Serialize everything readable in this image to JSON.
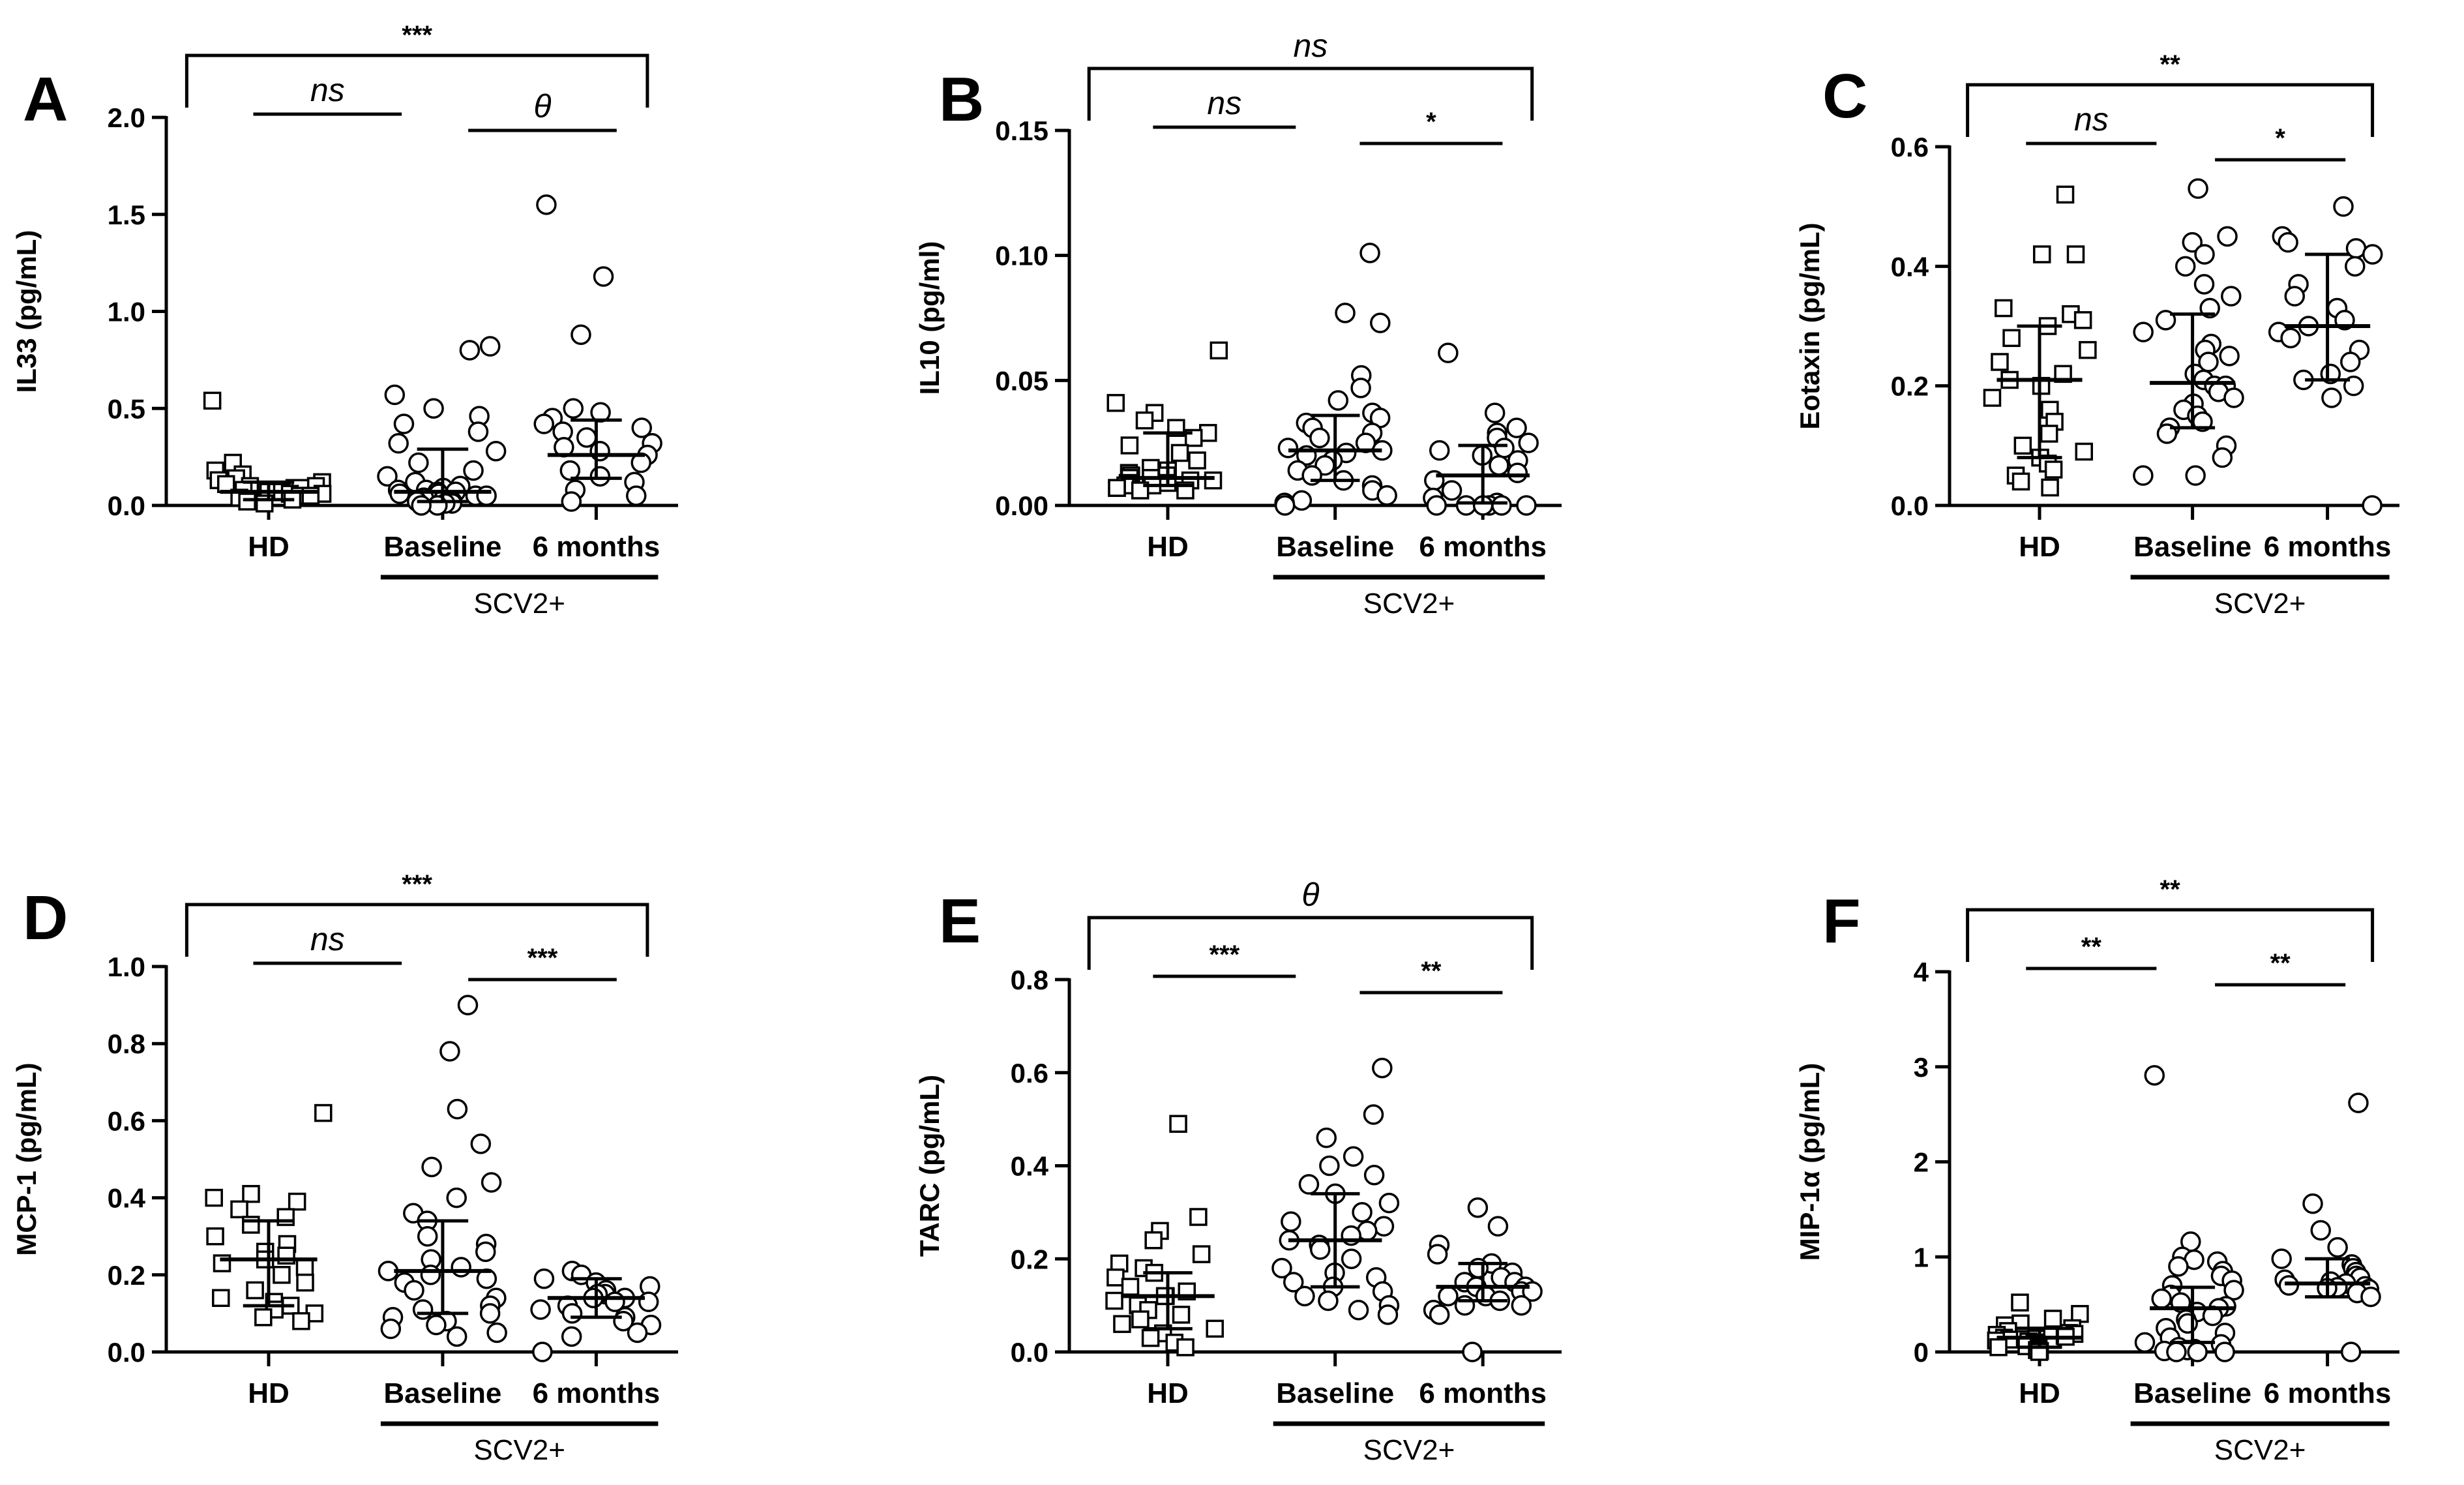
{
  "chart_data": [
    {
      "type": "scatter",
      "panel": "A",
      "ylabel": "IL33 (pg/mL)",
      "ylim": [
        0,
        2.0
      ],
      "yticks": [
        "0.0",
        "0.5",
        "1.0",
        "1.5",
        "2.0"
      ],
      "categories": [
        "HD",
        "Baseline",
        "6 months"
      ],
      "group_label": "SCV2+",
      "markers": [
        "square",
        "circle",
        "circle"
      ],
      "series": [
        {
          "name": "HD",
          "median": 0.07,
          "q1": 0.03,
          "q3": 0.12,
          "values": [
            0.54,
            0.22,
            0.18,
            0.16,
            0.14,
            0.13,
            0.12,
            0.11,
            0.1,
            0.1,
            0.09,
            0.09,
            0.08,
            0.08,
            0.07,
            0.07,
            0.06,
            0.06,
            0.05,
            0.05,
            0.04,
            0.03,
            0.02,
            0.01
          ]
        },
        {
          "name": "Baseline",
          "median": 0.07,
          "q1": 0.02,
          "q3": 0.29,
          "values": [
            0.82,
            0.8,
            0.57,
            0.5,
            0.46,
            0.42,
            0.38,
            0.32,
            0.28,
            0.22,
            0.18,
            0.15,
            0.12,
            0.1,
            0.09,
            0.08,
            0.08,
            0.07,
            0.07,
            0.06,
            0.06,
            0.05,
            0.05,
            0.04,
            0.03,
            0.02,
            0.02,
            0.01,
            0.01,
            0.0,
            0.0
          ]
        },
        {
          "name": "6 months",
          "median": 0.26,
          "q1": 0.14,
          "q3": 0.44,
          "values": [
            1.55,
            1.18,
            0.88,
            0.5,
            0.48,
            0.45,
            0.42,
            0.4,
            0.38,
            0.35,
            0.32,
            0.3,
            0.28,
            0.26,
            0.22,
            0.18,
            0.15,
            0.12,
            0.08,
            0.05,
            0.02
          ]
        }
      ],
      "comparisons": [
        {
          "groups": [
            "HD",
            "6 months"
          ],
          "label": "***",
          "style": "bracket",
          "italic": false
        },
        {
          "groups": [
            "HD",
            "Baseline"
          ],
          "label": "ns",
          "style": "line",
          "italic": true
        },
        {
          "groups": [
            "Baseline",
            "6 months"
          ],
          "label": "θ",
          "style": "line",
          "italic": true
        }
      ]
    },
    {
      "type": "scatter",
      "panel": "B",
      "ylabel": "IL10 (pg/ml)",
      "ylim": [
        0,
        0.15
      ],
      "yticks": [
        "0.00",
        "0.05",
        "0.10",
        "0.15"
      ],
      "categories": [
        "HD",
        "Baseline",
        "6 months"
      ],
      "group_label": "SCV2+",
      "markers": [
        "square",
        "circle",
        "circle"
      ],
      "series": [
        {
          "name": "HD",
          "median": 0.011,
          "q1": 0.008,
          "q3": 0.029,
          "values": [
            0.062,
            0.041,
            0.037,
            0.034,
            0.031,
            0.029,
            0.027,
            0.024,
            0.021,
            0.018,
            0.015,
            0.014,
            0.013,
            0.012,
            0.012,
            0.011,
            0.011,
            0.01,
            0.01,
            0.009,
            0.009,
            0.008,
            0.008,
            0.007,
            0.007,
            0.006,
            0.006
          ]
        },
        {
          "name": "Baseline",
          "median": 0.022,
          "q1": 0.01,
          "q3": 0.036,
          "values": [
            0.101,
            0.077,
            0.073,
            0.052,
            0.047,
            0.042,
            0.037,
            0.035,
            0.033,
            0.031,
            0.029,
            0.027,
            0.025,
            0.023,
            0.022,
            0.021,
            0.02,
            0.018,
            0.016,
            0.014,
            0.012,
            0.01,
            0.008,
            0.006,
            0.004,
            0.002,
            0.001,
            0.0
          ]
        },
        {
          "name": "6 months",
          "median": 0.012,
          "q1": 0.001,
          "q3": 0.024,
          "values": [
            0.061,
            0.037,
            0.031,
            0.029,
            0.027,
            0.025,
            0.023,
            0.022,
            0.02,
            0.018,
            0.016,
            0.013,
            0.01,
            0.006,
            0.003,
            0.001,
            0.0,
            0.0,
            0.0,
            0.0,
            0.0,
            0.0
          ]
        }
      ],
      "comparisons": [
        {
          "groups": [
            "HD",
            "6 months"
          ],
          "label": "ns",
          "style": "bracket",
          "italic": true
        },
        {
          "groups": [
            "HD",
            "Baseline"
          ],
          "label": "ns",
          "style": "line",
          "italic": true
        },
        {
          "groups": [
            "Baseline",
            "6 months"
          ],
          "label": "*",
          "style": "line",
          "italic": false
        }
      ]
    },
    {
      "type": "scatter",
      "panel": "C",
      "ylabel": "Eotaxin (pg/mL)",
      "ylim": [
        0,
        0.6
      ],
      "yticks": [
        "0.0",
        "0.2",
        "0.4",
        "0.6"
      ],
      "categories": [
        "HD",
        "Baseline",
        "6 months"
      ],
      "group_label": "SCV2+",
      "markers": [
        "square",
        "circle",
        "circle"
      ],
      "series": [
        {
          "name": "HD",
          "median": 0.21,
          "q1": 0.08,
          "q3": 0.3,
          "values": [
            0.52,
            0.42,
            0.42,
            0.33,
            0.32,
            0.31,
            0.3,
            0.28,
            0.26,
            0.24,
            0.22,
            0.21,
            0.2,
            0.18,
            0.16,
            0.14,
            0.12,
            0.1,
            0.09,
            0.08,
            0.07,
            0.06,
            0.05,
            0.04,
            0.03
          ]
        },
        {
          "name": "Baseline",
          "median": 0.205,
          "q1": 0.13,
          "q3": 0.32,
          "values": [
            0.53,
            0.45,
            0.44,
            0.42,
            0.4,
            0.37,
            0.35,
            0.33,
            0.31,
            0.29,
            0.27,
            0.26,
            0.25,
            0.24,
            0.22,
            0.21,
            0.2,
            0.2,
            0.19,
            0.18,
            0.17,
            0.16,
            0.15,
            0.14,
            0.13,
            0.12,
            0.1,
            0.08,
            0.05,
            0.05
          ]
        },
        {
          "name": "6 months",
          "median": 0.3,
          "q1": 0.21,
          "q3": 0.42,
          "values": [
            0.5,
            0.45,
            0.44,
            0.43,
            0.42,
            0.4,
            0.37,
            0.35,
            0.33,
            0.31,
            0.3,
            0.29,
            0.28,
            0.26,
            0.24,
            0.22,
            0.21,
            0.2,
            0.18,
            0.0
          ]
        }
      ],
      "comparisons": [
        {
          "groups": [
            "HD",
            "6 months"
          ],
          "label": "**",
          "style": "bracket",
          "italic": false
        },
        {
          "groups": [
            "HD",
            "Baseline"
          ],
          "label": "ns",
          "style": "line",
          "italic": true
        },
        {
          "groups": [
            "Baseline",
            "6 months"
          ],
          "label": "*",
          "style": "line",
          "italic": false
        }
      ]
    },
    {
      "type": "scatter",
      "panel": "D",
      "ylabel": "MCP-1 (pg/mL)",
      "ylim": [
        0,
        1.0
      ],
      "yticks": [
        "0.0",
        "0.2",
        "0.4",
        "0.6",
        "0.8",
        "1.0"
      ],
      "categories": [
        "HD",
        "Baseline",
        "6 months"
      ],
      "group_label": "SCV2+",
      "markers": [
        "square",
        "circle",
        "circle"
      ],
      "series": [
        {
          "name": "HD",
          "median": 0.24,
          "q1": 0.12,
          "q3": 0.34,
          "values": [
            0.62,
            0.41,
            0.4,
            0.39,
            0.37,
            0.35,
            0.33,
            0.3,
            0.28,
            0.26,
            0.25,
            0.24,
            0.23,
            0.22,
            0.2,
            0.18,
            0.16,
            0.14,
            0.13,
            0.12,
            0.11,
            0.1,
            0.09,
            0.08
          ]
        },
        {
          "name": "Baseline",
          "median": 0.21,
          "q1": 0.1,
          "q3": 0.34,
          "values": [
            0.9,
            0.78,
            0.63,
            0.54,
            0.48,
            0.44,
            0.4,
            0.36,
            0.34,
            0.3,
            0.28,
            0.26,
            0.24,
            0.22,
            0.21,
            0.2,
            0.19,
            0.18,
            0.16,
            0.14,
            0.12,
            0.11,
            0.1,
            0.09,
            0.08,
            0.07,
            0.06,
            0.05,
            0.04
          ]
        },
        {
          "name": "6 months",
          "median": 0.14,
          "q1": 0.09,
          "q3": 0.19,
          "values": [
            0.21,
            0.2,
            0.19,
            0.18,
            0.17,
            0.16,
            0.15,
            0.15,
            0.14,
            0.14,
            0.13,
            0.13,
            0.12,
            0.11,
            0.1,
            0.09,
            0.08,
            0.07,
            0.05,
            0.04,
            0.0
          ]
        }
      ],
      "comparisons": [
        {
          "groups": [
            "HD",
            "6 months"
          ],
          "label": "***",
          "style": "bracket",
          "italic": false
        },
        {
          "groups": [
            "HD",
            "Baseline"
          ],
          "label": "ns",
          "style": "line",
          "italic": true
        },
        {
          "groups": [
            "Baseline",
            "6 months"
          ],
          "label": "***",
          "style": "line",
          "italic": false
        }
      ]
    },
    {
      "type": "scatter",
      "panel": "E",
      "ylabel": "TARC (pg/mL)",
      "ylim": [
        0,
        0.8
      ],
      "yticks": [
        "0.0",
        "0.2",
        "0.4",
        "0.6",
        "0.8"
      ],
      "categories": [
        "HD",
        "Baseline",
        "6 months"
      ],
      "group_label": "SCV2+",
      "markers": [
        "square",
        "circle",
        "circle"
      ],
      "series": [
        {
          "name": "HD",
          "median": 0.12,
          "q1": 0.05,
          "q3": 0.17,
          "values": [
            0.49,
            0.29,
            0.26,
            0.24,
            0.21,
            0.19,
            0.18,
            0.17,
            0.16,
            0.14,
            0.13,
            0.12,
            0.12,
            0.11,
            0.1,
            0.09,
            0.08,
            0.07,
            0.06,
            0.05,
            0.04,
            0.03,
            0.02,
            0.01
          ]
        },
        {
          "name": "Baseline",
          "median": 0.24,
          "q1": 0.14,
          "q3": 0.34,
          "values": [
            0.61,
            0.51,
            0.46,
            0.42,
            0.4,
            0.38,
            0.36,
            0.34,
            0.32,
            0.3,
            0.28,
            0.27,
            0.26,
            0.25,
            0.24,
            0.23,
            0.22,
            0.2,
            0.18,
            0.17,
            0.16,
            0.15,
            0.14,
            0.13,
            0.12,
            0.11,
            0.1,
            0.09,
            0.08
          ]
        },
        {
          "name": "6 months",
          "median": 0.14,
          "q1": 0.11,
          "q3": 0.19,
          "values": [
            0.31,
            0.27,
            0.23,
            0.21,
            0.19,
            0.18,
            0.17,
            0.16,
            0.15,
            0.15,
            0.14,
            0.14,
            0.13,
            0.13,
            0.12,
            0.12,
            0.11,
            0.1,
            0.1,
            0.09,
            0.08,
            0.0
          ]
        }
      ],
      "comparisons": [
        {
          "groups": [
            "HD",
            "6 months"
          ],
          "label": "θ",
          "style": "bracket",
          "italic": true
        },
        {
          "groups": [
            "HD",
            "Baseline"
          ],
          "label": "***",
          "style": "line",
          "italic": false
        },
        {
          "groups": [
            "Baseline",
            "6 months"
          ],
          "label": "**",
          "style": "line",
          "italic": false
        }
      ]
    },
    {
      "type": "scatter",
      "panel": "F",
      "ylabel": "MIP-1α (pg/mL)",
      "ylim": [
        0,
        4
      ],
      "yticks": [
        "0",
        "1",
        "2",
        "3",
        "4"
      ],
      "categories": [
        "HD",
        "Baseline",
        "6 months"
      ],
      "group_label": "SCV2+",
      "markers": [
        "square",
        "circle",
        "circle"
      ],
      "series": [
        {
          "name": "HD",
          "median": 0.15,
          "q1": 0.05,
          "q3": 0.25,
          "values": [
            0.52,
            0.4,
            0.35,
            0.3,
            0.28,
            0.25,
            0.22,
            0.2,
            0.19,
            0.18,
            0.17,
            0.16,
            0.15,
            0.14,
            0.13,
            0.12,
            0.11,
            0.1,
            0.08,
            0.06,
            0.05,
            0.04,
            0.02,
            0.01,
            0.0
          ]
        },
        {
          "name": "Baseline",
          "median": 0.46,
          "q1": 0.1,
          "q3": 0.68,
          "values": [
            2.91,
            1.16,
            1.0,
            0.97,
            0.95,
            0.9,
            0.85,
            0.8,
            0.75,
            0.7,
            0.65,
            0.6,
            0.56,
            0.52,
            0.48,
            0.46,
            0.42,
            0.38,
            0.34,
            0.3,
            0.25,
            0.2,
            0.15,
            0.1,
            0.08,
            0.05,
            0.03,
            0.02,
            0.01,
            0.0,
            0.0,
            0.0
          ]
        },
        {
          "name": "6 months",
          "median": 0.72,
          "q1": 0.58,
          "q3": 0.98,
          "values": [
            2.62,
            1.56,
            1.28,
            1.1,
            0.98,
            0.92,
            0.88,
            0.84,
            0.8,
            0.78,
            0.76,
            0.74,
            0.72,
            0.7,
            0.69,
            0.68,
            0.67,
            0.66,
            0.62,
            0.58,
            0.0
          ]
        }
      ],
      "comparisons": [
        {
          "groups": [
            "HD",
            "6 months"
          ],
          "label": "**",
          "style": "bracket",
          "italic": false
        },
        {
          "groups": [
            "HD",
            "Baseline"
          ],
          "label": "**",
          "style": "line",
          "italic": false
        },
        {
          "groups": [
            "Baseline",
            "6 months"
          ],
          "label": "**",
          "style": "line",
          "italic": false
        }
      ]
    }
  ]
}
